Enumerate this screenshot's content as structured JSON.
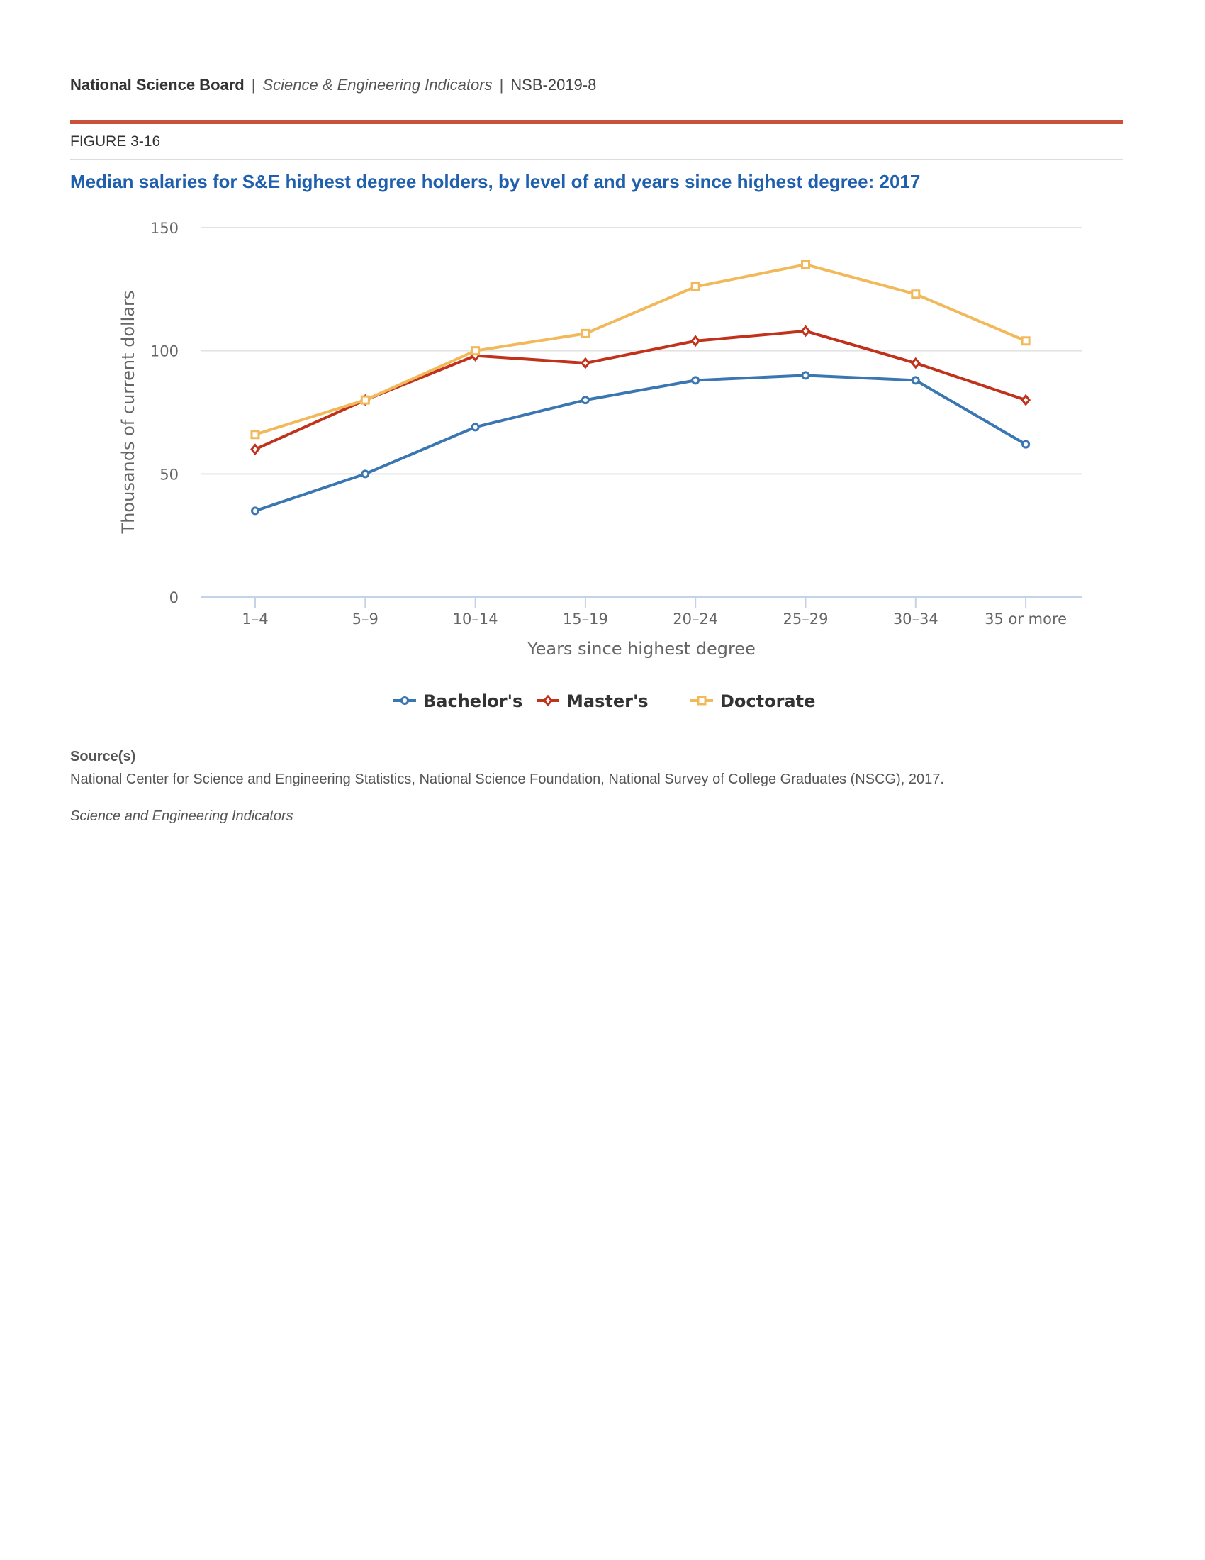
{
  "header": {
    "org": "National Science Board",
    "sep": "|",
    "publication": "Science & Engineering Indicators",
    "report": "NSB-2019-8"
  },
  "figure_label": "FIGURE 3-16",
  "source": {
    "heading": "Source(s)",
    "text": "National Center for Science and Engineering Statistics, National Science Foundation, National Survey of College Graduates (NSCG), 2017.",
    "footer": "Science and Engineering Indicators"
  },
  "chart_data": {
    "type": "line",
    "title": "Median salaries for S&E highest degree holders, by level of and years since highest degree: 2017",
    "xlabel": "Years since highest degree",
    "ylabel": "Thousands of current dollars",
    "ylim": [
      0,
      150
    ],
    "yticks": [
      "0",
      "50",
      "100",
      "150"
    ],
    "categories": [
      "1–4",
      "5–9",
      "10–14",
      "15–19",
      "20–24",
      "25–29",
      "30–34",
      "35 or more"
    ],
    "grid": true,
    "legend_position": "bottom",
    "series": [
      {
        "name": "Bachelor's",
        "color": "#3a76b2",
        "marker": "circle",
        "values": [
          35,
          50,
          69,
          80,
          88,
          90,
          88,
          62
        ]
      },
      {
        "name": "Master's",
        "color": "#c0321b",
        "marker": "diamond",
        "values": [
          60,
          80,
          98,
          95,
          104,
          108,
          95,
          80
        ]
      },
      {
        "name": "Doctorate",
        "color": "#f2b95a",
        "marker": "square",
        "values": [
          66,
          80,
          100,
          107,
          126,
          135,
          123,
          104
        ]
      }
    ]
  }
}
